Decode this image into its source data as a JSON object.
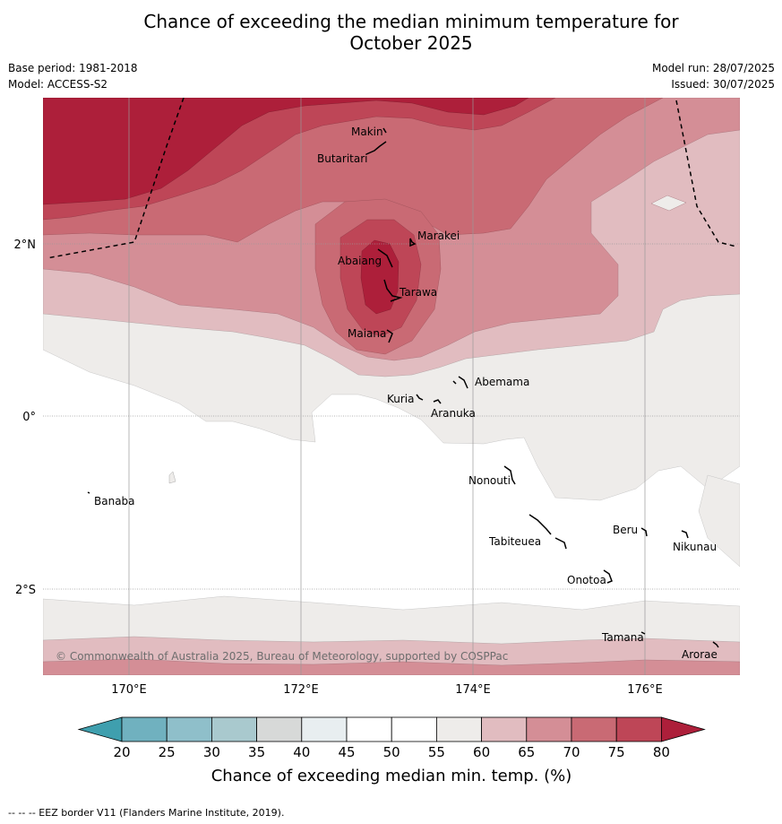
{
  "title": {
    "line1": "Chance of exceeding the median minimum temperature for",
    "line2": "October 2025"
  },
  "meta": {
    "base_period": "Base period: 1981-2018",
    "model": "Model: ACCESS-S2",
    "model_run": "Model run: 28/07/2025",
    "issued": "Issued: 30/07/2025"
  },
  "map": {
    "lon_ticks": [
      "170°E",
      "172°E",
      "174°E",
      "176°E"
    ],
    "lat_ticks": [
      "2°N",
      "0°",
      "2°S"
    ],
    "copyright": "© Commonwealth of Australia 2025, Bureau of Meteorology, supported by COSPPac",
    "places": [
      "Makin",
      "Butaritari",
      "Marakei",
      "Abaiang",
      "Tarawa",
      "Maiana",
      "Abemama",
      "Kuria",
      "Aranuka",
      "Nonouti",
      "Banaba",
      "Beru",
      "Tabiteuea",
      "Nikunau",
      "Onotoa",
      "Tamana",
      "Arorae"
    ]
  },
  "colorbar": {
    "ticks": [
      "20",
      "25",
      "30",
      "35",
      "40",
      "45",
      "50",
      "55",
      "60",
      "65",
      "70",
      "75",
      "80"
    ],
    "label": "Chance of exceeding median min. temp. (%)",
    "colors": [
      "#3f9fae",
      "#70b1bf",
      "#8fbfca",
      "#a9c9ce",
      "#d7d9d8",
      "#e8eef0",
      "#ffffff",
      "#ffffff",
      "#eeecea",
      "#e1bcc0",
      "#d48e96",
      "#c96a74",
      "#be4657",
      "#ad1f3a"
    ]
  },
  "footer": "--  --  -- EEZ border V11 (Flanders Marine Institute, 2019)."
}
